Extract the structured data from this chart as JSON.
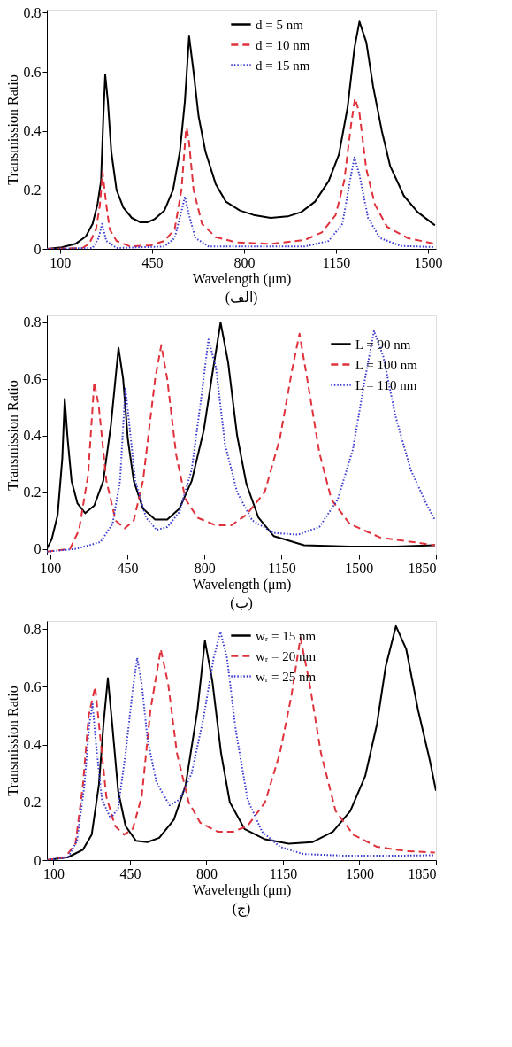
{
  "chart_data": [
    {
      "type": "line",
      "xlabel": "Wavelength (μm)",
      "ylabel": "Transmission Ratio",
      "annotations": [
        "(الف)"
      ],
      "xlim": [
        50,
        1530
      ],
      "ylim": [
        0,
        0.81
      ],
      "xticks": [
        100,
        450,
        800,
        1150,
        1500
      ],
      "yticks": [
        0,
        0.2,
        0.4,
        0.6,
        0.8
      ],
      "legend": "top",
      "grid": false,
      "series": [
        {
          "name": "d = 5 nm",
          "color": "#000000",
          "line_style": "solid",
          "x": [
            50,
            107,
            159,
            198,
            224,
            243,
            256,
            265,
            272,
            282,
            295,
            315,
            341,
            373,
            406,
            432,
            458,
            497,
            530,
            556,
            575,
            591,
            608,
            627,
            653,
            692,
            731,
            784,
            836,
            901,
            966,
            1018,
            1070,
            1122,
            1161,
            1194,
            1220,
            1239,
            1265,
            1291,
            1324,
            1356,
            1408,
            1460,
            1526
          ],
          "values": [
            0,
            0.005,
            0.017,
            0.042,
            0.085,
            0.153,
            0.23,
            0.45,
            0.59,
            0.5,
            0.33,
            0.2,
            0.14,
            0.105,
            0.09,
            0.09,
            0.1,
            0.13,
            0.2,
            0.33,
            0.5,
            0.72,
            0.6,
            0.45,
            0.33,
            0.22,
            0.16,
            0.13,
            0.115,
            0.105,
            0.11,
            0.125,
            0.16,
            0.23,
            0.32,
            0.48,
            0.68,
            0.77,
            0.7,
            0.55,
            0.4,
            0.28,
            0.18,
            0.125,
            0.08
          ]
        },
        {
          "name": "d = 10 nm",
          "color": "#e0323c",
          "line_style": "dashed",
          "x": [
            50,
            185,
            211,
            237,
            252,
            262,
            276,
            289,
            315,
            367,
            445,
            497,
            536,
            562,
            579,
            582,
            591,
            608,
            640,
            692,
            770,
            901,
            1031,
            1096,
            1148,
            1181,
            1207,
            1222,
            1239,
            1265,
            1298,
            1344,
            1422,
            1526
          ],
          "values": [
            0,
            0.003,
            0.017,
            0.066,
            0.15,
            0.26,
            0.15,
            0.066,
            0.027,
            0.008,
            0.012,
            0.027,
            0.066,
            0.2,
            0.4,
            0.41,
            0.36,
            0.2,
            0.085,
            0.04,
            0.022,
            0.017,
            0.03,
            0.056,
            0.114,
            0.23,
            0.42,
            0.51,
            0.46,
            0.27,
            0.15,
            0.075,
            0.037,
            0.017
          ]
        },
        {
          "name": "d = 15 nm",
          "color": "#3a3ad0",
          "line_style": "dotted",
          "x": [
            50,
            224,
            247,
            260,
            276,
            315,
            497,
            536,
            560,
            575,
            591,
            615,
            666,
            1031,
            1122,
            1174,
            1207,
            1220,
            1239,
            1272,
            1317,
            1395,
            1526
          ],
          "values": [
            0,
            0.003,
            0.037,
            0.085,
            0.027,
            0.003,
            0.008,
            0.037,
            0.12,
            0.177,
            0.114,
            0.037,
            0.008,
            0.008,
            0.027,
            0.085,
            0.25,
            0.31,
            0.25,
            0.104,
            0.037,
            0.01,
            0.006
          ]
        }
      ]
    },
    {
      "type": "line",
      "xlabel": "Wavelength (μm)",
      "ylabel": "Transmission Ratio",
      "annotations": [
        "(ب)"
      ],
      "xlim": [
        85,
        1850
      ],
      "ylim": [
        -0.02,
        0.825
      ],
      "xticks": [
        100,
        450,
        800,
        1150,
        1500,
        1850
      ],
      "yticks": [
        0,
        0.2,
        0.4,
        0.6,
        0.8
      ],
      "legend": "top right",
      "grid": false,
      "series": [
        {
          "name": "L = 90 nm",
          "color": "#000000",
          "line_style": "solid",
          "x": [
            85,
            107,
            134,
            155,
            166,
            179,
            197,
            224,
            259,
            300,
            341,
            376,
            410,
            431,
            452,
            479,
            521,
            576,
            631,
            686,
            742,
            797,
            838,
            873,
            907,
            948,
            990,
            1045,
            1114,
            1252,
            1459,
            1666,
            1846
          ],
          "values": [
            0,
            0.034,
            0.12,
            0.32,
            0.53,
            0.39,
            0.24,
            0.16,
            0.126,
            0.153,
            0.24,
            0.44,
            0.71,
            0.6,
            0.39,
            0.24,
            0.142,
            0.104,
            0.104,
            0.142,
            0.24,
            0.42,
            0.63,
            0.8,
            0.66,
            0.4,
            0.23,
            0.11,
            0.045,
            0.013,
            0.008,
            0.008,
            0.013
          ]
        },
        {
          "name": "L = 100 nm",
          "color": "#e0323c",
          "line_style": "dashed",
          "x": [
            85,
            190,
            231,
            272,
            300,
            321,
            355,
            397,
            438,
            479,
            521,
            576,
            604,
            631,
            672,
            714,
            769,
            852,
            921,
            990,
            1073,
            1142,
            1197,
            1231,
            1266,
            1321,
            1376,
            1459,
            1597,
            1846
          ],
          "values": [
            -0.01,
            0,
            0.067,
            0.26,
            0.59,
            0.5,
            0.24,
            0.1,
            0.072,
            0.1,
            0.24,
            0.6,
            0.72,
            0.6,
            0.33,
            0.175,
            0.11,
            0.083,
            0.083,
            0.12,
            0.2,
            0.39,
            0.63,
            0.76,
            0.6,
            0.34,
            0.174,
            0.088,
            0.04,
            0.013
          ]
        },
        {
          "name": "L = 110 nm",
          "color": "#3a3ad0",
          "line_style": "dotted",
          "x": [
            85,
            217,
            328,
            383,
            417,
            441,
            459,
            486,
            535,
            583,
            631,
            686,
            742,
            783,
            818,
            852,
            893,
            948,
            1017,
            1114,
            1224,
            1321,
            1404,
            1473,
            1528,
            1569,
            1611,
            1666,
            1735,
            1804,
            1846
          ],
          "values": [
            -0.01,
            0,
            0.024,
            0.088,
            0.24,
            0.57,
            0.44,
            0.24,
            0.11,
            0.067,
            0.077,
            0.13,
            0.28,
            0.52,
            0.74,
            0.64,
            0.37,
            0.2,
            0.1,
            0.056,
            0.05,
            0.077,
            0.174,
            0.35,
            0.6,
            0.77,
            0.68,
            0.47,
            0.28,
            0.163,
            0.1
          ]
        }
      ]
    },
    {
      "type": "line",
      "xlabel": "Wavelength (μm)",
      "ylabel": "Transmission Ratio",
      "annotations": [
        "(ج)"
      ],
      "xlim": [
        70,
        1850
      ],
      "ylim": [
        0,
        0.828
      ],
      "xticks": [
        100,
        450,
        800,
        1150,
        1500,
        1850
      ],
      "yticks": [
        0,
        0.2,
        0.4,
        0.6,
        0.8
      ],
      "legend": "top",
      "grid": false,
      "series": [
        {
          "name": "wᵣ = 15 nm",
          "color": "#000000",
          "line_style": "solid",
          "x": [
            70,
            167,
            235,
            275,
            308,
            329,
            349,
            369,
            396,
            430,
            477,
            530,
            584,
            651,
            705,
            759,
            793,
            827,
            867,
            907,
            974,
            1068,
            1176,
            1284,
            1378,
            1458,
            1526,
            1580,
            1620,
            1667,
            1714,
            1768,
            1822,
            1850
          ],
          "values": [
            0,
            0.01,
            0.036,
            0.088,
            0.26,
            0.47,
            0.63,
            0.47,
            0.24,
            0.118,
            0.067,
            0.062,
            0.077,
            0.14,
            0.26,
            0.52,
            0.76,
            0.62,
            0.37,
            0.2,
            0.108,
            0.072,
            0.057,
            0.062,
            0.098,
            0.17,
            0.29,
            0.47,
            0.67,
            0.81,
            0.73,
            0.52,
            0.345,
            0.24
          ]
        },
        {
          "name": "wᵣ = 20 nm",
          "color": "#e0323c",
          "line_style": "dashed",
          "x": [
            70,
            154,
            201,
            235,
            261,
            291,
            315,
            342,
            382,
            423,
            463,
            504,
            544,
            591,
            625,
            665,
            719,
            772,
            853,
            921,
            988,
            1068,
            1136,
            1189,
            1230,
            1270,
            1324,
            1391,
            1472,
            1580,
            1714,
            1845
          ],
          "values": [
            0,
            0.01,
            0.057,
            0.26,
            0.5,
            0.6,
            0.42,
            0.22,
            0.118,
            0.088,
            0.108,
            0.22,
            0.52,
            0.73,
            0.61,
            0.37,
            0.2,
            0.129,
            0.098,
            0.098,
            0.118,
            0.2,
            0.37,
            0.57,
            0.77,
            0.62,
            0.37,
            0.17,
            0.088,
            0.046,
            0.031,
            0.026
          ]
        },
        {
          "name": "wᵣ = 25 nm",
          "color": "#3a3ad0",
          "line_style": "dotted",
          "x": [
            70,
            167,
            208,
            242,
            264,
            279,
            295,
            322,
            362,
            396,
            430,
            463,
            483,
            504,
            530,
            571,
            631,
            678,
            732,
            786,
            833,
            864,
            894,
            934,
            988,
            1055,
            1136,
            1243,
            1445,
            1647,
            1845
          ],
          "values": [
            0,
            0.01,
            0.067,
            0.26,
            0.47,
            0.54,
            0.4,
            0.21,
            0.144,
            0.18,
            0.37,
            0.59,
            0.7,
            0.61,
            0.42,
            0.27,
            0.19,
            0.21,
            0.3,
            0.49,
            0.7,
            0.79,
            0.7,
            0.45,
            0.21,
            0.098,
            0.046,
            0.021,
            0.015,
            0.015,
            0.017
          ]
        }
      ]
    }
  ]
}
